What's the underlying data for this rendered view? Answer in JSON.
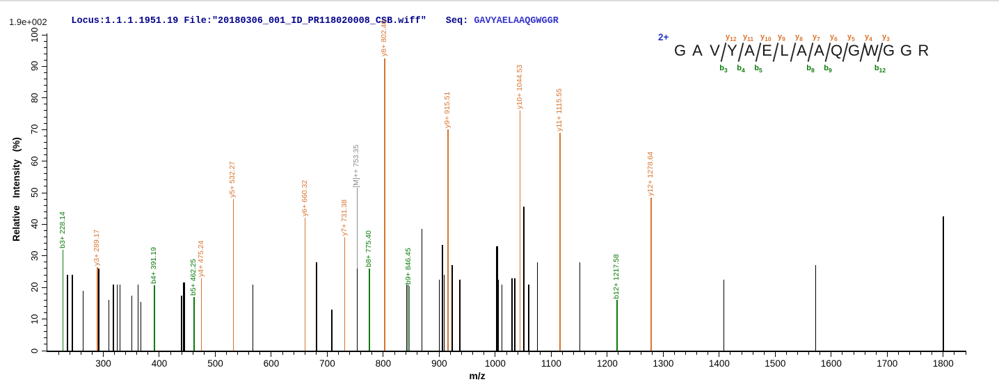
{
  "header": {
    "locus_file": "Locus:1.1.1.1951.19 File:\"20180306_001_ID_PR118020008_CSB.wiff\"",
    "seq_label": "Seq:",
    "sequence": "GAVYAELAAQGWGGR",
    "intensity_scale": "1.9e+002"
  },
  "colors": {
    "y_ion": "#d9742f",
    "b_ion": "#0a7a0a",
    "precursor_label": "#8c8c8c",
    "peak_default": "#000000",
    "header_blue": "#00008b",
    "sequence_blue": "#3434cc",
    "charge_blue": "#2233cc"
  },
  "peptide_annotation": {
    "charge": "2+",
    "residues": [
      "G",
      "A",
      "V",
      "Y",
      "A",
      "E",
      "L",
      "A",
      "A",
      "Q",
      "G",
      "W",
      "G",
      "G",
      "R"
    ],
    "cuts": [
      {
        "after_residue": 3,
        "y_label": "y12",
        "b_label": "b3"
      },
      {
        "after_residue": 4,
        "y_label": "y11",
        "b_label": "b4"
      },
      {
        "after_residue": 5,
        "y_label": "y10",
        "b_label": "b5"
      },
      {
        "after_residue": 6,
        "y_label": "y9",
        "b_label": null
      },
      {
        "after_residue": 7,
        "y_label": "y8",
        "b_label": null
      },
      {
        "after_residue": 8,
        "y_label": "y7",
        "b_label": "b8"
      },
      {
        "after_residue": 9,
        "y_label": "y6",
        "b_label": "b9"
      },
      {
        "after_residue": 10,
        "y_label": "y5",
        "b_label": null
      },
      {
        "after_residue": 11,
        "y_label": "y4",
        "b_label": null
      },
      {
        "after_residue": 12,
        "y_label": "y3",
        "b_label": "b12"
      }
    ]
  },
  "chart_data": {
    "type": "bar",
    "subtype": "centroided MS/MS fragment spectrum",
    "title": "",
    "xlabel": "m/z",
    "ylabel": "Relative Intensity (%)",
    "xlim": [
      200,
      1840
    ],
    "ylim": [
      0,
      100
    ],
    "x_axis": {
      "first_major": 300,
      "last_major": 1800,
      "major_step": 100,
      "minor_step": 20
    },
    "y_axis": {
      "first_major": 0,
      "last_major": 100,
      "major_step": 10,
      "minor_step": 2
    },
    "grid": false,
    "legend": "none",
    "base_peak_absolute_intensity": "1.9e+002",
    "annotated_peaks": [
      {
        "label": "b3+ 228.14",
        "mz": 228.14,
        "intensity": 32,
        "ion": "b"
      },
      {
        "label": "y3+ 289.17",
        "mz": 289.17,
        "intensity": 26.5,
        "ion": "y"
      },
      {
        "label": "b4+ 391.19",
        "mz": 391.19,
        "intensity": 20.8,
        "ion": "b"
      },
      {
        "label": "b5+ 462.25",
        "mz": 462.25,
        "intensity": 17,
        "ion": "b"
      },
      {
        "label": "y4+ 475.24",
        "mz": 475.24,
        "intensity": 23,
        "ion": "y"
      },
      {
        "label": "y5+ 532.27",
        "mz": 532.27,
        "intensity": 48,
        "ion": "y"
      },
      {
        "label": "y6+ 660.32",
        "mz": 660.32,
        "intensity": 42,
        "ion": "y"
      },
      {
        "label": "y7+ 731.38",
        "mz": 731.38,
        "intensity": 36,
        "ion": "y"
      },
      {
        "label": "[M]++ 753.35",
        "mz": 753.35,
        "intensity": 26,
        "ion": "precursor",
        "label_raise": 116
      },
      {
        "label": "b8+ 775.40",
        "mz": 775.4,
        "intensity": 26,
        "ion": "b"
      },
      {
        "label": "y8+ 802.40",
        "mz": 802.4,
        "intensity": 100,
        "ion": "y"
      },
      {
        "label": "b9+ 846.45",
        "mz": 846.45,
        "intensity": 20.5,
        "ion": "b"
      },
      {
        "label": "y9+ 915.51",
        "mz": 915.51,
        "intensity": 70,
        "ion": "y"
      },
      {
        "label": "y10+ 1044.53",
        "mz": 1044.53,
        "intensity": 76,
        "ion": "y"
      },
      {
        "label": "y11+ 1115.55",
        "mz": 1115.55,
        "intensity": 69,
        "ion": "y"
      },
      {
        "label": "b12+ 1217.58",
        "mz": 1217.58,
        "intensity": 16,
        "ion": "b"
      },
      {
        "label": "y12+ 1278.64",
        "mz": 1278.64,
        "intensity": 48.5,
        "ion": "y"
      }
    ],
    "unannotated_peaks": [
      {
        "mz": 236,
        "intensity": 24
      },
      {
        "mz": 245,
        "intensity": 24
      },
      {
        "mz": 264,
        "intensity": 19
      },
      {
        "mz": 292,
        "intensity": 26
      },
      {
        "mz": 310,
        "intensity": 16
      },
      {
        "mz": 318,
        "intensity": 21
      },
      {
        "mz": 325,
        "intensity": 21
      },
      {
        "mz": 330,
        "intensity": 21
      },
      {
        "mz": 351,
        "intensity": 17.5
      },
      {
        "mz": 362,
        "intensity": 21
      },
      {
        "mz": 367,
        "intensity": 15.5
      },
      {
        "mz": 440,
        "intensity": 17.5
      },
      {
        "mz": 444,
        "intensity": 21.5,
        "bold": true
      },
      {
        "mz": 567,
        "intensity": 21
      },
      {
        "mz": 681,
        "intensity": 28
      },
      {
        "mz": 708,
        "intensity": 13
      },
      {
        "mz": 842,
        "intensity": 21
      },
      {
        "mz": 844.5,
        "intensity": 21
      },
      {
        "mz": 869,
        "intensity": 38.5
      },
      {
        "mz": 900,
        "intensity": 22.5
      },
      {
        "mz": 906,
        "intensity": 33.5
      },
      {
        "mz": 909,
        "intensity": 24
      },
      {
        "mz": 923,
        "intensity": 27
      },
      {
        "mz": 937,
        "intensity": 22.5
      },
      {
        "mz": 1003,
        "intensity": 33,
        "bold": true
      },
      {
        "mz": 1005,
        "intensity": 22.5
      },
      {
        "mz": 1012,
        "intensity": 21
      },
      {
        "mz": 1030,
        "intensity": 23
      },
      {
        "mz": 1035,
        "intensity": 23
      },
      {
        "mz": 1051,
        "intensity": 45.5
      },
      {
        "mz": 1060,
        "intensity": 21
      },
      {
        "mz": 1075,
        "intensity": 28
      },
      {
        "mz": 1151,
        "intensity": 28
      },
      {
        "mz": 1408,
        "intensity": 22.5
      },
      {
        "mz": 1572,
        "intensity": 27
      },
      {
        "mz": 1800,
        "intensity": 42.5
      }
    ]
  }
}
